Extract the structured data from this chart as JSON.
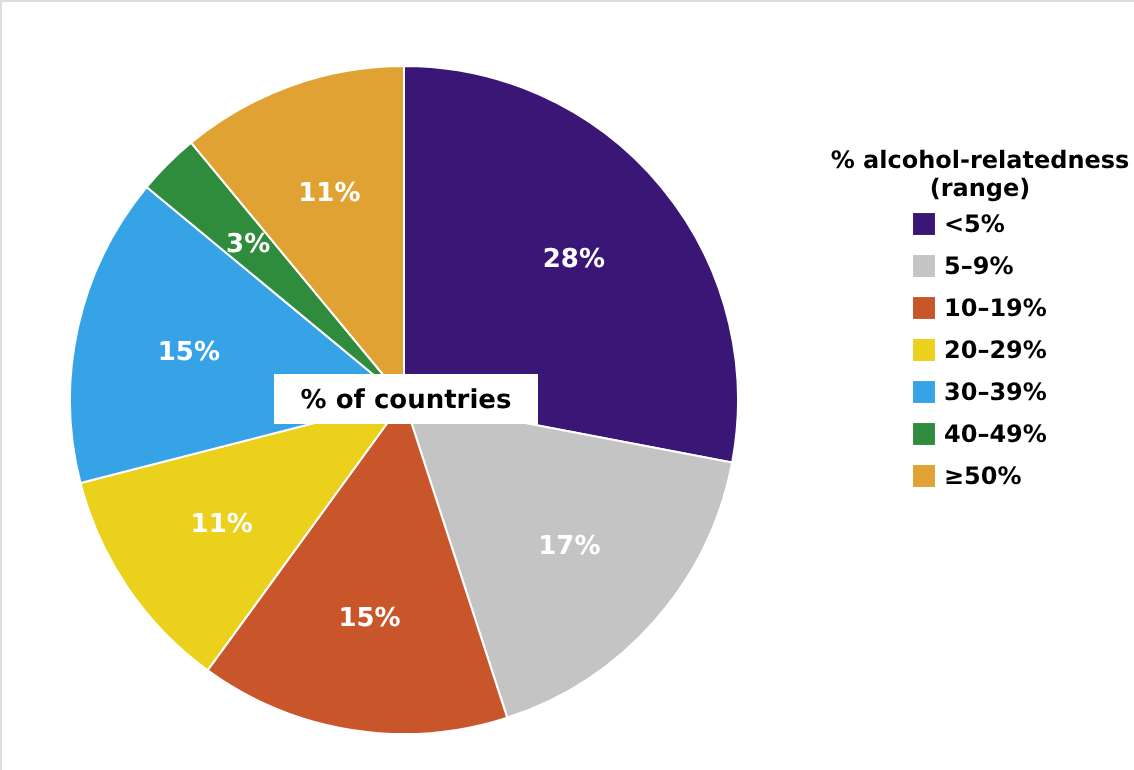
{
  "chart_data": {
    "type": "pie",
    "categories": [
      "<5%",
      "5–9%",
      "10–19%",
      "20–29%",
      "30–39%",
      "40–49%",
      "≥50%"
    ],
    "values": [
      28,
      17,
      15,
      11,
      15,
      3,
      11
    ],
    "value_labels": [
      "28%",
      "17%",
      "15%",
      "11%",
      "15%",
      "3%",
      "11%"
    ],
    "colors": [
      "#3a1677",
      "#c4c4c4",
      "#c9552b",
      "#ecd11c",
      "#36a3e6",
      "#2f8c3c",
      "#e0a232"
    ],
    "legend_title": "% alcohol-relatedness (range)",
    "legend": "right",
    "annotations": [
      "% of countries"
    ]
  }
}
